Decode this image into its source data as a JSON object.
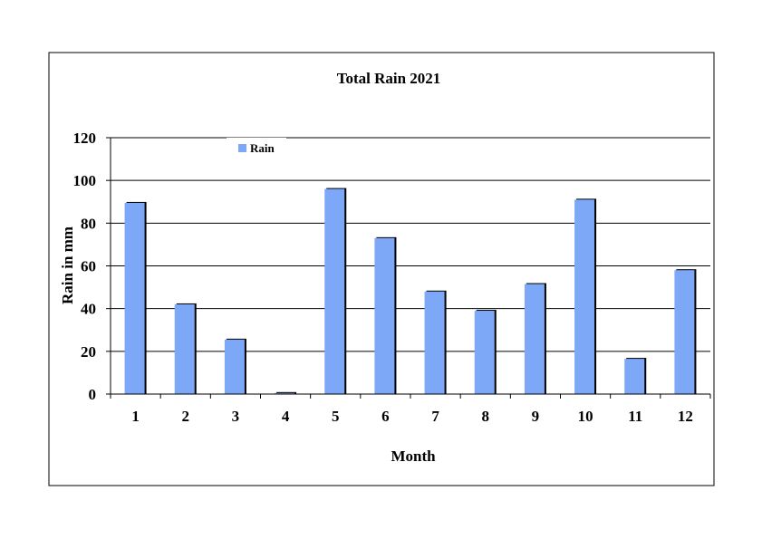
{
  "chart_data": {
    "type": "bar",
    "title": "Total Rain 2021",
    "xlabel": "Month",
    "ylabel": "Rain in mm",
    "categories": [
      "1",
      "2",
      "3",
      "4",
      "5",
      "6",
      "7",
      "8",
      "9",
      "10",
      "11",
      "12"
    ],
    "series": [
      {
        "name": "Rain",
        "values": [
          89.5,
          42,
          25.5,
          0.5,
          96,
          73,
          48,
          39,
          51.5,
          91,
          16.5,
          58
        ]
      }
    ],
    "ylim": [
      0,
      120
    ],
    "yticks": [
      "0",
      "20",
      "40",
      "60",
      "80",
      "100",
      "120"
    ],
    "grid": true,
    "legend_position": "top-left",
    "colors": {
      "bar": "#7DA7F7",
      "bar_shadow": "#000000",
      "grid": "#000000"
    }
  }
}
